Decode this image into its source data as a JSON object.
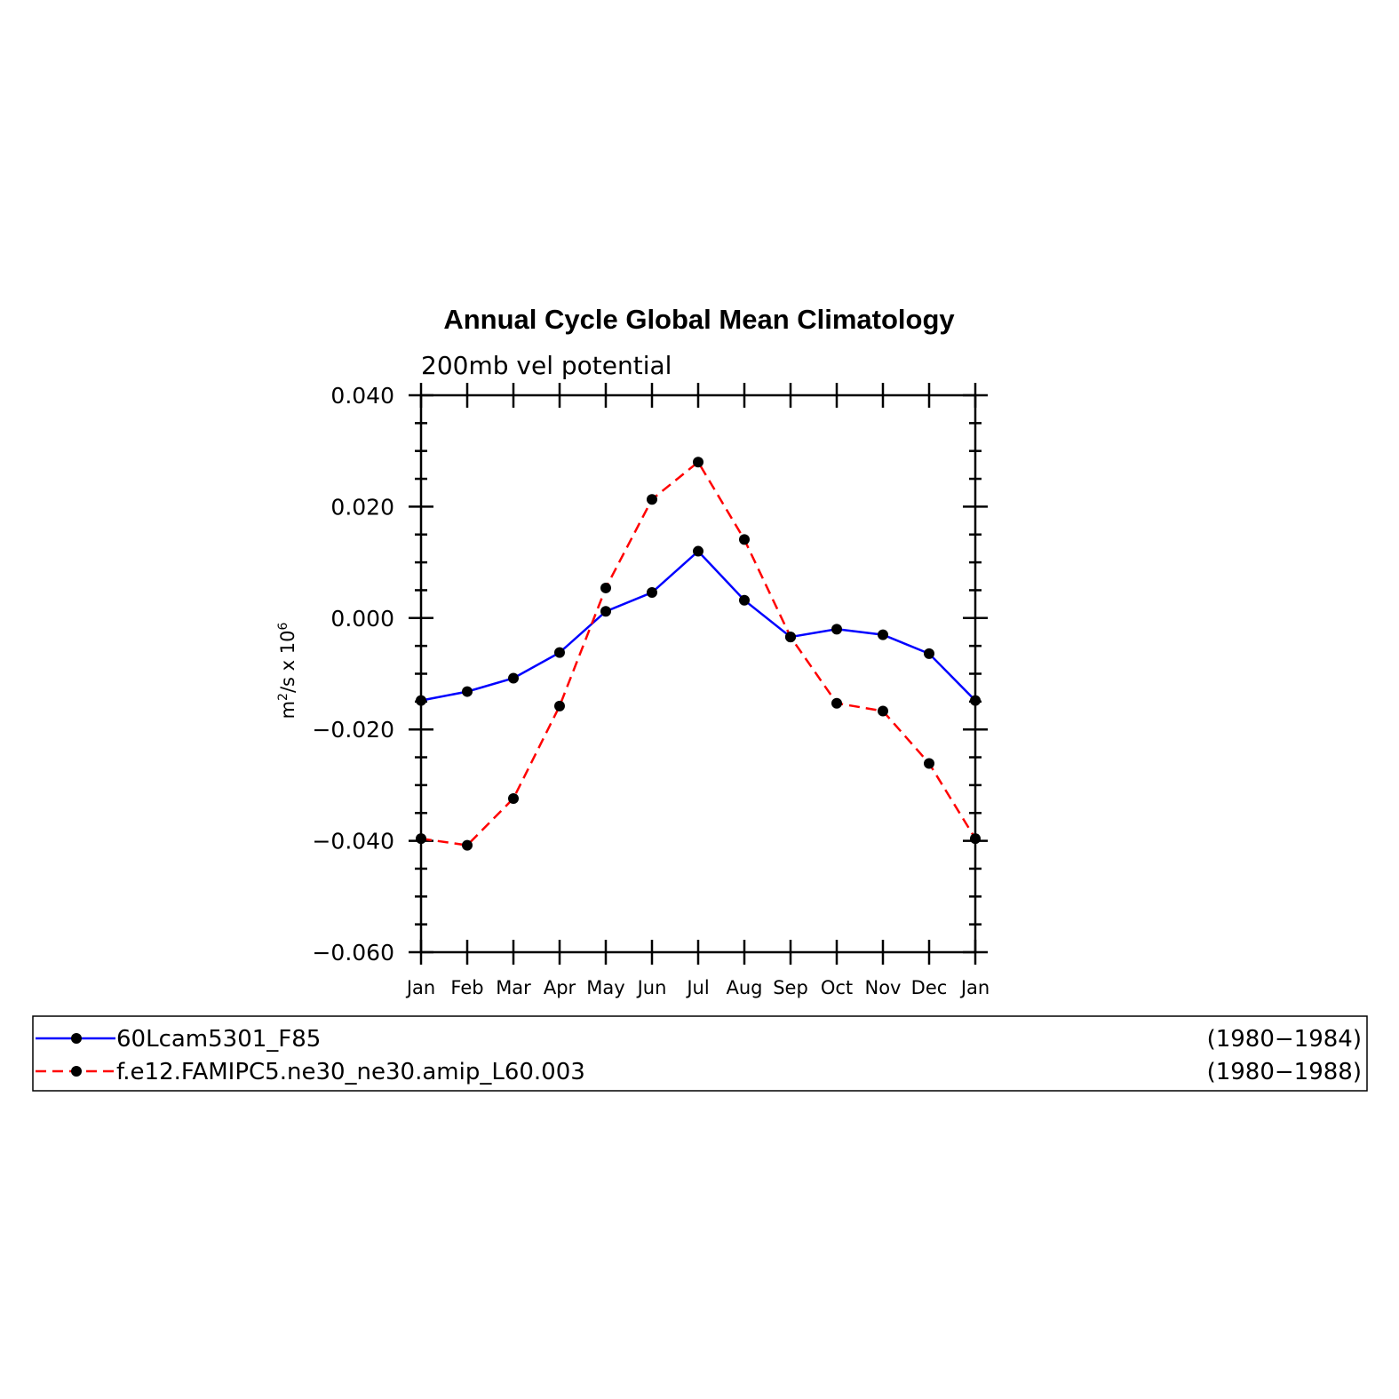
{
  "chart_data": {
    "type": "line",
    "title": "Annual Cycle Global Mean Climatology",
    "subtitle": "200mb vel potential",
    "ylabel_base": "m",
    "ylabel_sup1": "2",
    "ylabel_mid": "/s x 10",
    "ylabel_sup2": "6",
    "ylim": [
      -0.06,
      0.04
    ],
    "yticks": [
      "0.040",
      "0.020",
      "0.000",
      "−0.020",
      "−0.040",
      "−0.060"
    ],
    "ytick_values": [
      0.04,
      0.02,
      0.0,
      -0.02,
      -0.04,
      -0.06
    ],
    "categories": [
      "Jan",
      "Feb",
      "Mar",
      "Apr",
      "May",
      "Jun",
      "Jul",
      "Aug",
      "Sep",
      "Oct",
      "Nov",
      "Dec",
      "Jan"
    ],
    "series": [
      {
        "name": "60Lcam5301_F85",
        "period": "(1980−1984)",
        "color": "#0000ff",
        "dash": "solid",
        "values": [
          -0.0148,
          -0.0132,
          -0.0108,
          -0.0062,
          0.0012,
          0.0046,
          0.012,
          0.0032,
          -0.0034,
          -0.002,
          -0.003,
          -0.0064,
          -0.0148
        ]
      },
      {
        "name": "f.e12.FAMIPC5.ne30_ne30.amip_L60.003",
        "period": "(1980−1988)",
        "color": "#ff0000",
        "dash": "dashed",
        "values": [
          -0.0396,
          -0.0408,
          -0.0324,
          -0.0158,
          0.0054,
          0.0213,
          0.028,
          0.0141,
          -0.0034,
          -0.0153,
          -0.0167,
          -0.0261,
          -0.0396
        ]
      }
    ]
  }
}
